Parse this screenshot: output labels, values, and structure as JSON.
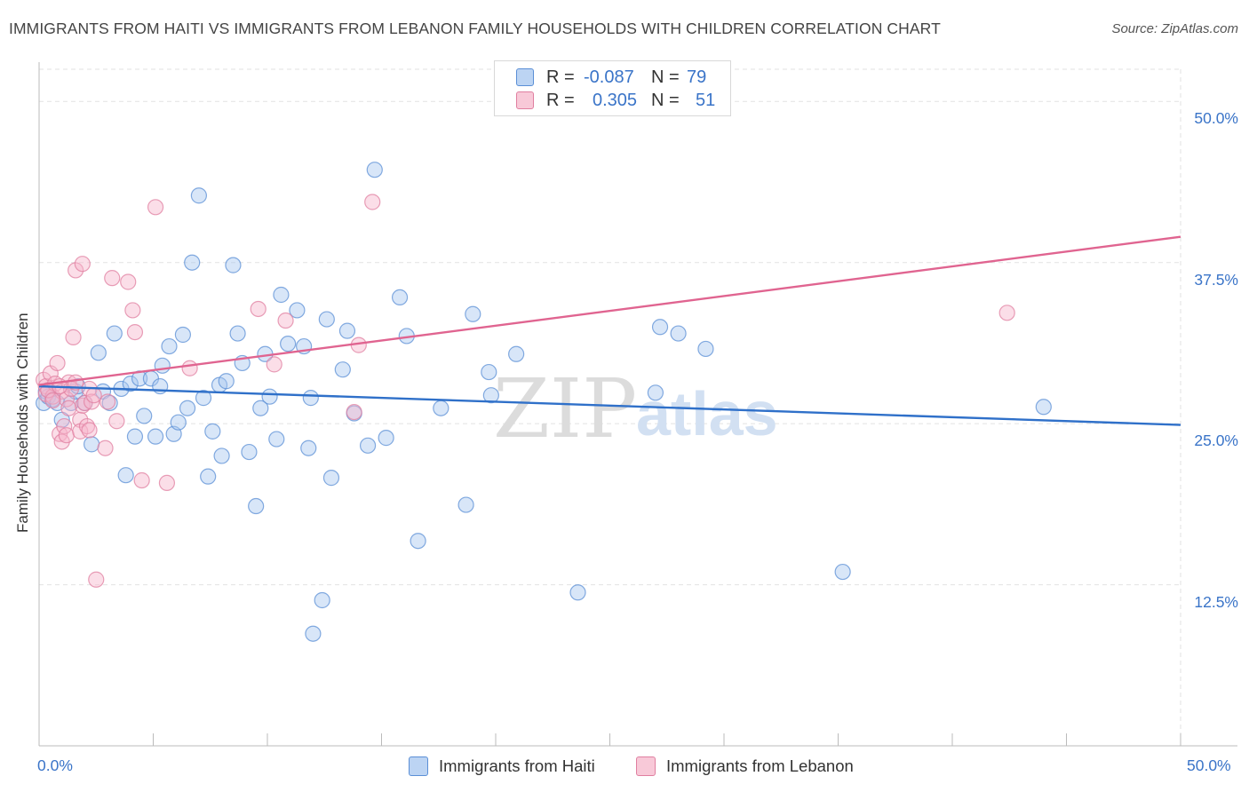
{
  "title": "IMMIGRANTS FROM HAITI VS IMMIGRANTS FROM LEBANON FAMILY HOUSEHOLDS WITH CHILDREN CORRELATION CHART",
  "source": "Source: ZipAtlas.com",
  "watermark": {
    "zip": "ZIP",
    "atlas": "atlas"
  },
  "legend": {
    "rows": [
      {
        "r_label": "R =",
        "r_value": "-0.087",
        "n_label": "N =",
        "n_value": "79",
        "color": "#a9c8f0"
      },
      {
        "r_label": "R =",
        "r_value": "0.305",
        "n_label": "N =",
        "n_value": "51",
        "color": "#f6b6cb"
      }
    ]
  },
  "bottom_legend": {
    "haiti": "Immigrants from Haiti",
    "lebanon": "Immigrants from Lebanon"
  },
  "colors": {
    "haiti_fill": "#a9c8f0",
    "haiti_stroke": "#5b8fd6",
    "haiti_line": "#2f70c9",
    "lebanon_fill": "#f6b6cb",
    "lebanon_stroke": "#e07fa0",
    "lebanon_line": "#e06490"
  },
  "chart_data": {
    "type": "scatter",
    "xlabel": "",
    "ylabel": "Family Households with Children",
    "xlim": [
      0,
      50
    ],
    "ylim": [
      0,
      52.5
    ],
    "x_tick_labels": [
      "0.0%",
      "50.0%"
    ],
    "y_ticks": [
      12.5,
      25.0,
      37.5,
      50.0
    ],
    "y_tick_labels": [
      "12.5%",
      "25.0%",
      "37.5%",
      "50.0%"
    ],
    "grid": true,
    "legend_position": "top-center",
    "series": [
      {
        "name": "Immigrants from Haiti",
        "trend": {
          "x": [
            0,
            50
          ],
          "y": [
            27.9,
            24.9
          ]
        },
        "points": [
          [
            0.2,
            26.6
          ],
          [
            0.3,
            27.5
          ],
          [
            0.4,
            27.1
          ],
          [
            0.6,
            26.9
          ],
          [
            0.8,
            26.6
          ],
          [
            1.0,
            25.3
          ],
          [
            1.4,
            26.6
          ],
          [
            1.6,
            27.5
          ],
          [
            1.7,
            27.9
          ],
          [
            2.0,
            26.6
          ],
          [
            2.3,
            23.4
          ],
          [
            2.6,
            30.5
          ],
          [
            2.8,
            27.5
          ],
          [
            3.1,
            26.6
          ],
          [
            3.3,
            32.0
          ],
          [
            3.6,
            27.7
          ],
          [
            3.8,
            21.0
          ],
          [
            4.0,
            28.1
          ],
          [
            4.2,
            24.0
          ],
          [
            4.4,
            28.5
          ],
          [
            4.6,
            25.6
          ],
          [
            4.9,
            28.5
          ],
          [
            5.1,
            24.0
          ],
          [
            5.3,
            27.9
          ],
          [
            5.4,
            29.5
          ],
          [
            5.7,
            31.0
          ],
          [
            5.9,
            24.2
          ],
          [
            6.1,
            25.1
          ],
          [
            6.3,
            31.9
          ],
          [
            6.5,
            26.2
          ],
          [
            6.7,
            37.5
          ],
          [
            7.0,
            42.7
          ],
          [
            7.2,
            27.0
          ],
          [
            7.4,
            20.9
          ],
          [
            7.6,
            24.4
          ],
          [
            7.9,
            28.0
          ],
          [
            8.0,
            22.5
          ],
          [
            8.2,
            28.3
          ],
          [
            8.5,
            37.3
          ],
          [
            8.7,
            32.0
          ],
          [
            8.9,
            29.7
          ],
          [
            9.2,
            22.8
          ],
          [
            9.5,
            18.6
          ],
          [
            9.7,
            26.2
          ],
          [
            9.9,
            30.4
          ],
          [
            10.1,
            27.1
          ],
          [
            10.4,
            23.8
          ],
          [
            10.6,
            35.0
          ],
          [
            10.9,
            31.2
          ],
          [
            11.3,
            33.8
          ],
          [
            11.6,
            31.0
          ],
          [
            11.8,
            23.1
          ],
          [
            11.9,
            27.0
          ],
          [
            12.0,
            8.7
          ],
          [
            12.4,
            11.3
          ],
          [
            12.6,
            33.1
          ],
          [
            12.8,
            20.8
          ],
          [
            13.3,
            29.2
          ],
          [
            13.5,
            32.2
          ],
          [
            13.8,
            25.8
          ],
          [
            14.4,
            23.3
          ],
          [
            14.7,
            44.7
          ],
          [
            15.2,
            23.9
          ],
          [
            15.8,
            34.8
          ],
          [
            16.1,
            31.8
          ],
          [
            16.6,
            15.9
          ],
          [
            17.6,
            26.2
          ],
          [
            18.7,
            18.7
          ],
          [
            19.0,
            33.5
          ],
          [
            19.7,
            29.0
          ],
          [
            19.8,
            27.2
          ],
          [
            20.9,
            30.4
          ],
          [
            23.6,
            11.9
          ],
          [
            27.0,
            27.4
          ],
          [
            27.2,
            32.5
          ],
          [
            28.0,
            32.0
          ],
          [
            29.2,
            30.8
          ],
          [
            35.2,
            13.5
          ],
          [
            44.0,
            26.3
          ]
        ]
      },
      {
        "name": "Immigrants from Lebanon",
        "trend": {
          "x": [
            0,
            50
          ],
          "y": [
            28.0,
            39.5
          ]
        },
        "points": [
          [
            0.2,
            28.4
          ],
          [
            0.3,
            27.9
          ],
          [
            0.3,
            27.3
          ],
          [
            0.5,
            28.9
          ],
          [
            0.6,
            27.1
          ],
          [
            0.7,
            28.1
          ],
          [
            0.8,
            29.7
          ],
          [
            0.9,
            24.2
          ],
          [
            1.0,
            23.6
          ],
          [
            1.0,
            27.5
          ],
          [
            1.1,
            24.8
          ],
          [
            1.2,
            26.9
          ],
          [
            1.2,
            24.1
          ],
          [
            1.3,
            28.2
          ],
          [
            1.4,
            27.7
          ],
          [
            1.5,
            31.7
          ],
          [
            1.6,
            36.9
          ],
          [
            1.6,
            28.2
          ],
          [
            1.8,
            25.3
          ],
          [
            1.8,
            24.4
          ],
          [
            1.9,
            26.4
          ],
          [
            1.9,
            37.4
          ],
          [
            2.0,
            26.6
          ],
          [
            2.1,
            24.8
          ],
          [
            2.2,
            27.7
          ],
          [
            2.2,
            24.5
          ],
          [
            2.3,
            26.7
          ],
          [
            2.5,
            12.9
          ],
          [
            2.9,
            23.1
          ],
          [
            3.0,
            26.7
          ],
          [
            3.2,
            36.3
          ],
          [
            3.4,
            25.2
          ],
          [
            3.9,
            36.0
          ],
          [
            4.1,
            33.8
          ],
          [
            4.2,
            32.1
          ],
          [
            4.5,
            20.6
          ],
          [
            5.1,
            41.8
          ],
          [
            5.6,
            20.4
          ],
          [
            6.6,
            29.3
          ],
          [
            9.6,
            33.9
          ],
          [
            10.3,
            29.6
          ],
          [
            10.8,
            33.0
          ],
          [
            13.8,
            25.9
          ],
          [
            14.0,
            31.1
          ],
          [
            14.6,
            42.2
          ],
          [
            42.4,
            33.6
          ],
          [
            0.4,
            27.6
          ],
          [
            0.6,
            26.8
          ],
          [
            0.9,
            27.9
          ],
          [
            1.3,
            26.2
          ],
          [
            2.4,
            27.2
          ]
        ]
      }
    ]
  }
}
